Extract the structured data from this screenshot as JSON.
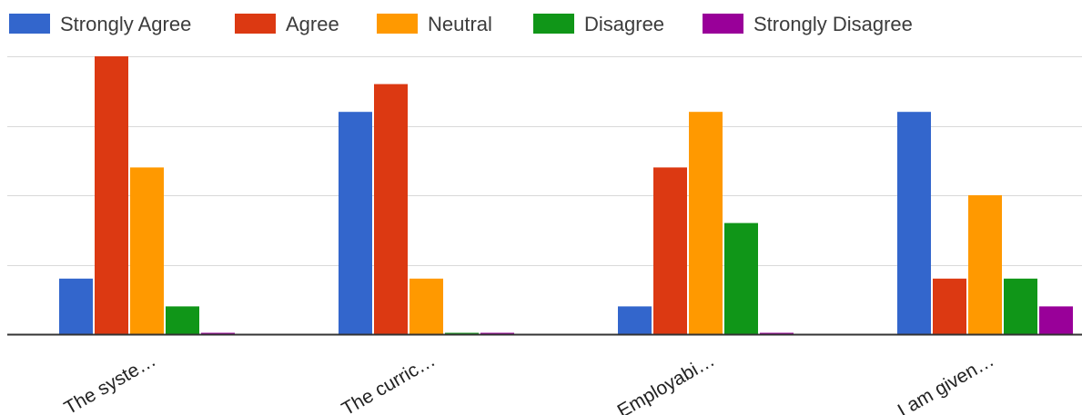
{
  "chart_data": {
    "type": "bar",
    "title": "",
    "xlabel": "",
    "ylabel": "",
    "categories": [
      "The syste…",
      "The curric…",
      "Employabi…",
      "I am given…"
    ],
    "ylim": [
      0,
      10
    ],
    "grid": true,
    "legend_position": "top",
    "series": [
      {
        "name": "Strongly Agree",
        "color": "#3366cc",
        "values": [
          2,
          8,
          1,
          8
        ]
      },
      {
        "name": "Agree",
        "color": "#dc3912",
        "values": [
          10,
          9,
          6,
          2
        ]
      },
      {
        "name": "Neutral",
        "color": "#ff9900",
        "values": [
          6,
          2,
          8,
          5
        ]
      },
      {
        "name": "Disagree",
        "color": "#109618",
        "values": [
          1,
          0,
          4,
          2
        ]
      },
      {
        "name": "Strongly Disagree",
        "color": "#990099",
        "values": [
          0,
          0,
          0,
          1
        ]
      }
    ]
  }
}
